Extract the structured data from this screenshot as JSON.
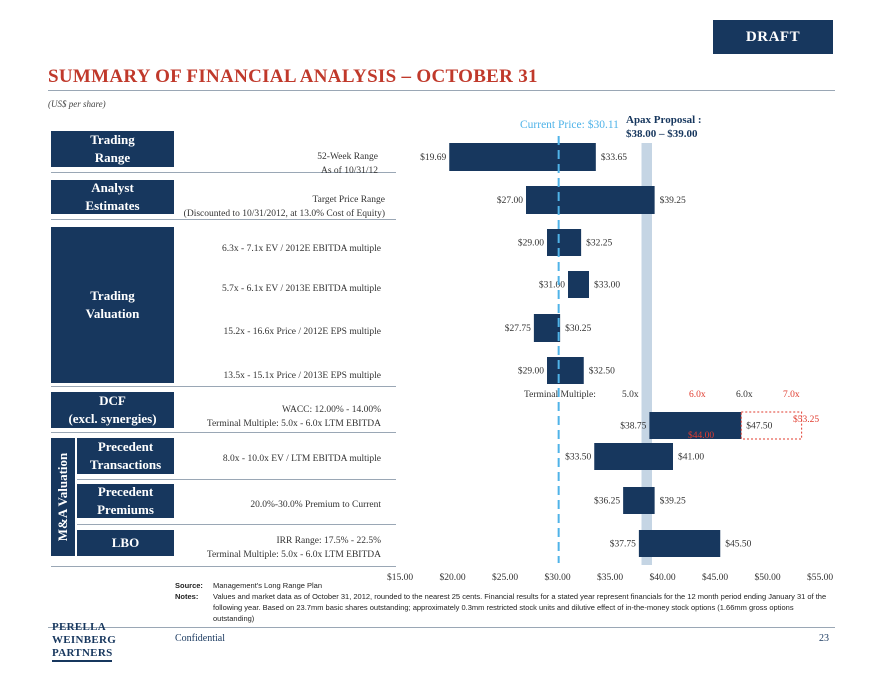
{
  "header": {
    "draft": "DRAFT",
    "title": "SUMMARY OF FINANCIAL ANALYSIS – OCTOBER 31",
    "subtitle": "(US$ per share)"
  },
  "categories": {
    "trading_range": "Trading|Range",
    "analyst": "Analyst|Estimates",
    "trading_valuation": "Trading|Valuation",
    "dcf": "DCF|(excl. synergies)",
    "precedent_transactions": "Precedent|Transactions",
    "precedent_premiums": "Precedent|Premiums",
    "lbo": "LBO",
    "ma_valuation": "M&A Valuation"
  },
  "descriptions": {
    "week52_a": "52-Week Range",
    "week52_b": "As of 10/31/12",
    "analyst_a": "Target Price Range",
    "analyst_b": "(Discounted to 10/31/2012, at 13.0% Cost of Equity)",
    "tv1": "6.3x - 7.1x EV / 2012E EBITDA multiple",
    "tv2": "5.7x - 6.1x EV / 2013E EBITDA multiple",
    "tv3": "15.2x - 16.6x Price / 2012E EPS multiple",
    "tv4": "13.5x - 15.1x Price / 2013E EPS multiple",
    "dcf_a": "WACC: 12.00% - 14.00%",
    "dcf_b": "Terminal Multiple: 5.0x - 6.0x LTM EBITDA",
    "pt": "8.0x - 10.0x EV / LTM EBITDA multiple",
    "pp": "20.0%-30.0% Premium to Current",
    "lbo_a": "IRR Range: 17.5% - 22.5%",
    "lbo_b": "Terminal Multiple: 5.0x - 6.0x LTM EBITDA"
  },
  "annotations": {
    "current_price": "Current Price: $30.11",
    "apax_a": "Apax Proposal :",
    "apax_b": "$38.00 – $39.00",
    "terminal_multiple": "Terminal Multiple:",
    "tm1": "5.0x",
    "tm2": "6.0x",
    "tm3": "6.0x",
    "tm4": "7.0x",
    "dcf_ext_high": "$53.25",
    "dcf_ext_low": "$44.00"
  },
  "chart_data": {
    "type": "bar",
    "orientation": "horizontal-range",
    "xlim": [
      15,
      55
    ],
    "x_ticks": [
      "$15.00",
      "$20.00",
      "$25.00",
      "$30.00",
      "$35.00",
      "$40.00",
      "$45.00",
      "$50.00",
      "$55.00"
    ],
    "current_price": 30.11,
    "apax_range": [
      38.0,
      39.0
    ],
    "series": [
      {
        "low": 19.69,
        "high": 33.65,
        "low_label": "$19.69",
        "high_label": "$33.65"
      },
      {
        "low": 27.0,
        "high": 39.25,
        "low_label": "$27.00",
        "high_label": "$39.25"
      },
      {
        "low": 29.0,
        "high": 32.25,
        "low_label": "$29.00",
        "high_label": "$32.25"
      },
      {
        "low": 31.0,
        "high": 33.0,
        "low_label": "$31.00",
        "high_label": "$33.00"
      },
      {
        "low": 27.75,
        "high": 30.25,
        "low_label": "$27.75",
        "high_label": "$30.25"
      },
      {
        "low": 29.0,
        "high": 32.5,
        "low_label": "$29.00",
        "high_label": "$32.50"
      },
      {
        "low": 38.75,
        "high": 47.5,
        "low_label": "$38.75",
        "high_label": "$47.50",
        "ext_high": 53.25
      },
      {
        "low": 33.5,
        "high": 41.0,
        "low_label": "$33.50",
        "high_label": "$41.00"
      },
      {
        "low": 36.25,
        "high": 39.25,
        "low_label": "$36.25",
        "high_label": "$39.25"
      },
      {
        "low": 37.75,
        "high": 45.5,
        "low_label": "$37.75",
        "high_label": "$45.50"
      }
    ],
    "colors": {
      "bar": "#17375e",
      "current_price": "#4fb3e8",
      "apax": "#c5d5e4",
      "extension": "#e03b2e"
    }
  },
  "footer": {
    "source_label": "Source:",
    "source": "Management's Long Range Plan",
    "notes_label": "Notes:",
    "notes": "Values and market data as of October 31, 2012, rounded to the nearest 25 cents. Financial results for a stated year represent financials for the 12 month period ending January 31 of the following year. Based on 23.7mm basic shares outstanding; approximately 0.3mm restricted stock units and dilutive effect of in-the-money stock options (1.66mm gross options outstanding)",
    "logo_1": "PERELLA",
    "logo_2": "WEINBERG",
    "logo_3": "PARTNERS",
    "confidential": "Confidential",
    "page": "23"
  }
}
